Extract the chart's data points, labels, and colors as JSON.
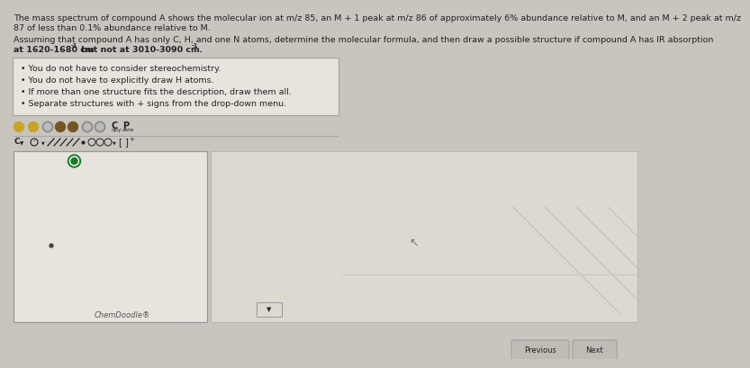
{
  "bg_color": "#c8c4be",
  "title1": "The mass spectrum of compound A shows the molecular ion at m/z 85, an M + 1 peak at m/z 86 of approximately 6% abundance relative to M, and an M + 2 peak at m/z",
  "title2": "87 of less than 0.1% abundance relative to M.",
  "para1": "Assuming that compound A has only C, H, and one N atoms, determine the molecular formula, and then draw a possible structure if compound A has IR absorption",
  "para2a": "at 1620-1680 cm",
  "para2b": "-1",
  "para2c": " but not at 3010-3090 cm",
  "para2d": "-1",
  "para2e": ".",
  "bullet1": "You do not have to consider stereochemistry.",
  "bullet2": "You do not have to explicitly draw H atoms.",
  "bullet3": "If more than one structure fits the description, draw them all.",
  "bullet4": "Separate structures with + signs from the drop-down menu.",
  "chemdoodle_label": "ChemDoodle®",
  "text_color": "#222222",
  "bullet_box_bg": "#e8e3dc",
  "bullet_box_edge": "#aaa49c",
  "draw_box_bg": "#e8e3dc",
  "draw_box_edge": "#999999",
  "right_box_bg": "#ddd8d0",
  "right_box_edge": "#aaaaaa",
  "green_color": "#1a7a2a",
  "dot_color": "#444444",
  "toolbar_bg": "#c8c4be",
  "fs": 6.8,
  "fs_bullet": 6.8
}
